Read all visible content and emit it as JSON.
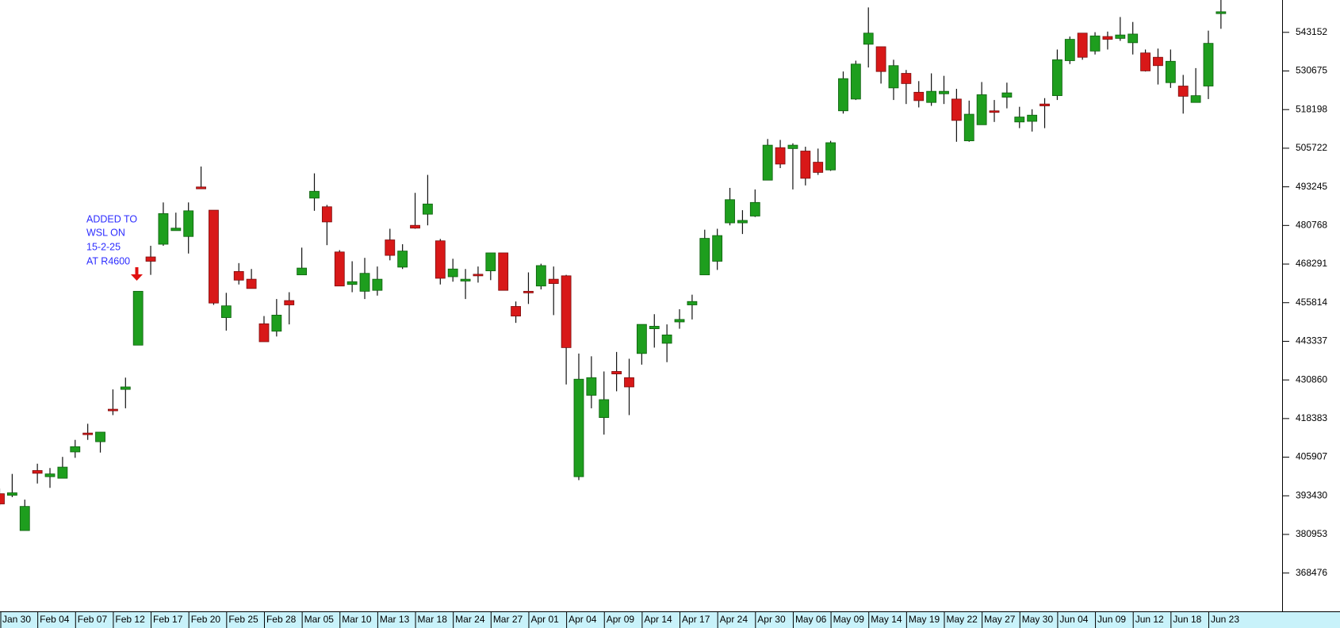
{
  "chart_data": {
    "type": "candlestick",
    "categories": [
      "Jan 30",
      null,
      null,
      "Feb 04",
      null,
      null,
      "Feb 07",
      null,
      null,
      "Feb 12",
      null,
      null,
      "Feb 17",
      null,
      null,
      "Feb 20",
      null,
      null,
      "Feb 25",
      null,
      null,
      "Feb 28",
      null,
      null,
      "Mar 05",
      null,
      null,
      "Mar 10",
      null,
      null,
      "Mar 13",
      null,
      null,
      "Mar 18",
      null,
      null,
      "Mar 24",
      null,
      null,
      "Mar 27",
      null,
      null,
      "Apr 01",
      null,
      null,
      "Apr 04",
      null,
      null,
      "Apr 09",
      null,
      null,
      "Apr 14",
      null,
      null,
      "Apr 17",
      null,
      null,
      "Apr 24",
      null,
      null,
      "Apr 30",
      null,
      null,
      "May 06",
      null,
      null,
      "May 09",
      null,
      null,
      "May 14",
      null,
      null,
      "May 19",
      null,
      null,
      "May 22",
      null,
      null,
      "May 27",
      null,
      null,
      "May 30",
      null,
      null,
      "Jun 04",
      null,
      null,
      "Jun 09",
      null,
      null,
      "Jun 12",
      null,
      null,
      "Jun 18",
      null,
      null,
      "Jun 23",
      null
    ],
    "open": [
      394100,
      393600,
      382200,
      401600,
      399600,
      399100,
      407600,
      413700,
      410900,
      421400,
      427800,
      442100,
      470600,
      474700,
      479100,
      477200,
      493200,
      485700,
      451000,
      465900,
      463400,
      449000,
      446600,
      456500,
      464800,
      489600,
      486800,
      472200,
      461700,
      459500,
      459800,
      476100,
      467300,
      480800,
      484400,
      475800,
      464200,
      462800,
      465000,
      466100,
      471900,
      454600,
      459500,
      461200,
      463400,
      464500,
      399600,
      425900,
      418700,
      433600,
      431600,
      439400,
      447400,
      442700,
      449600,
      455100,
      464800,
      469200,
      481600,
      481600,
      483800,
      495400,
      505900,
      505600,
      504800,
      501200,
      498700,
      517800,
      521600,
      539300,
      538500,
      525200,
      529900,
      523800,
      520500,
      523300,
      521600,
      508100,
      513300,
      517800,
      522200,
      514200,
      514400,
      520000,
      522700,
      534000,
      542900,
      537100,
      541800,
      541200,
      539800,
      536500,
      535100,
      526900,
      525800,
      520500,
      525800,
      549200
    ],
    "high": [
      395800,
      400500,
      392200,
      403800,
      402400,
      406000,
      411500,
      416700,
      414000,
      427800,
      431600,
      459500,
      474200,
      488200,
      484900,
      488200,
      499800,
      485700,
      459000,
      468600,
      466700,
      451500,
      457000,
      459200,
      473600,
      497600,
      487400,
      472800,
      469200,
      470300,
      467500,
      479700,
      474700,
      491300,
      497100,
      476400,
      470000,
      466700,
      467500,
      471900,
      471900,
      456200,
      465600,
      468400,
      467500,
      464800,
      439400,
      438500,
      433600,
      439900,
      437700,
      448800,
      452100,
      448800,
      453700,
      458400,
      479400,
      479700,
      492900,
      485700,
      492400,
      508700,
      508400,
      507300,
      506200,
      505600,
      508100,
      530500,
      534000,
      551200,
      538500,
      534300,
      531000,
      527400,
      529900,
      529100,
      524900,
      521100,
      527100,
      521300,
      526900,
      519100,
      518300,
      521900,
      537600,
      541800,
      542900,
      543200,
      543400,
      548100,
      546500,
      537600,
      537900,
      537600,
      529400,
      531600,
      543700,
      553600
    ],
    "low": [
      390200,
      393000,
      382200,
      397400,
      396000,
      399100,
      405700,
      411500,
      407400,
      419500,
      421700,
      442100,
      464800,
      474200,
      479100,
      471700,
      492600,
      455100,
      446800,
      461700,
      460400,
      443200,
      444900,
      448800,
      464800,
      485500,
      474400,
      461200,
      459200,
      457000,
      458100,
      469500,
      466700,
      479700,
      480800,
      461700,
      462600,
      457000,
      462300,
      463100,
      459800,
      449300,
      455400,
      460100,
      451800,
      429400,
      398500,
      421700,
      413200,
      427200,
      419500,
      435800,
      441300,
      436600,
      447400,
      450400,
      464800,
      466400,
      480800,
      478000,
      483500,
      495400,
      499300,
      492400,
      493700,
      497100,
      498400,
      516900,
      521300,
      531800,
      526600,
      521300,
      520000,
      518900,
      519400,
      520000,
      507800,
      507800,
      513300,
      514200,
      518600,
      512200,
      511100,
      512200,
      521300,
      532900,
      534300,
      536000,
      537600,
      540400,
      536000,
      530500,
      526300,
      525200,
      516900,
      520500,
      521600,
      544300
    ],
    "close": [
      390800,
      394400,
      390000,
      400700,
      400500,
      402700,
      409300,
      413200,
      414000,
      421200,
      428600,
      459500,
      469200,
      484600,
      479900,
      485500,
      492600,
      455700,
      454800,
      463100,
      460400,
      443200,
      451800,
      455100,
      467000,
      491800,
      481900,
      461200,
      462600,
      465300,
      463400,
      471100,
      472500,
      479900,
      487700,
      463700,
      466700,
      463400,
      464500,
      471900,
      459800,
      451500,
      459200,
      467800,
      462000,
      441300,
      431100,
      431600,
      424500,
      432800,
      428600,
      448800,
      448200,
      445400,
      450400,
      456200,
      476600,
      477500,
      489100,
      482400,
      488200,
      506700,
      500600,
      506700,
      496000,
      497900,
      507500,
      528200,
      532900,
      542900,
      530500,
      532400,
      526600,
      521100,
      524100,
      524100,
      514700,
      516700,
      523000,
      517500,
      523600,
      515800,
      516400,
      519400,
      534300,
      540900,
      535100,
      542000,
      540900,
      542300,
      542600,
      530700,
      532400,
      533800,
      522500,
      522700,
      539600,
      549800
    ],
    "up_color": "#1e9e1e",
    "down_color": "#d81818",
    "ylim": [
      356100,
      553600
    ],
    "yticks": [
      368476,
      380953,
      393430,
      405907,
      418383,
      430860,
      443337,
      455814,
      468291,
      480768,
      493245,
      505722,
      518198,
      530675,
      543152
    ],
    "annotation": [
      "ADDED TO",
      "WSL ON",
      "15-2-25",
      "AT R4600"
    ]
  }
}
